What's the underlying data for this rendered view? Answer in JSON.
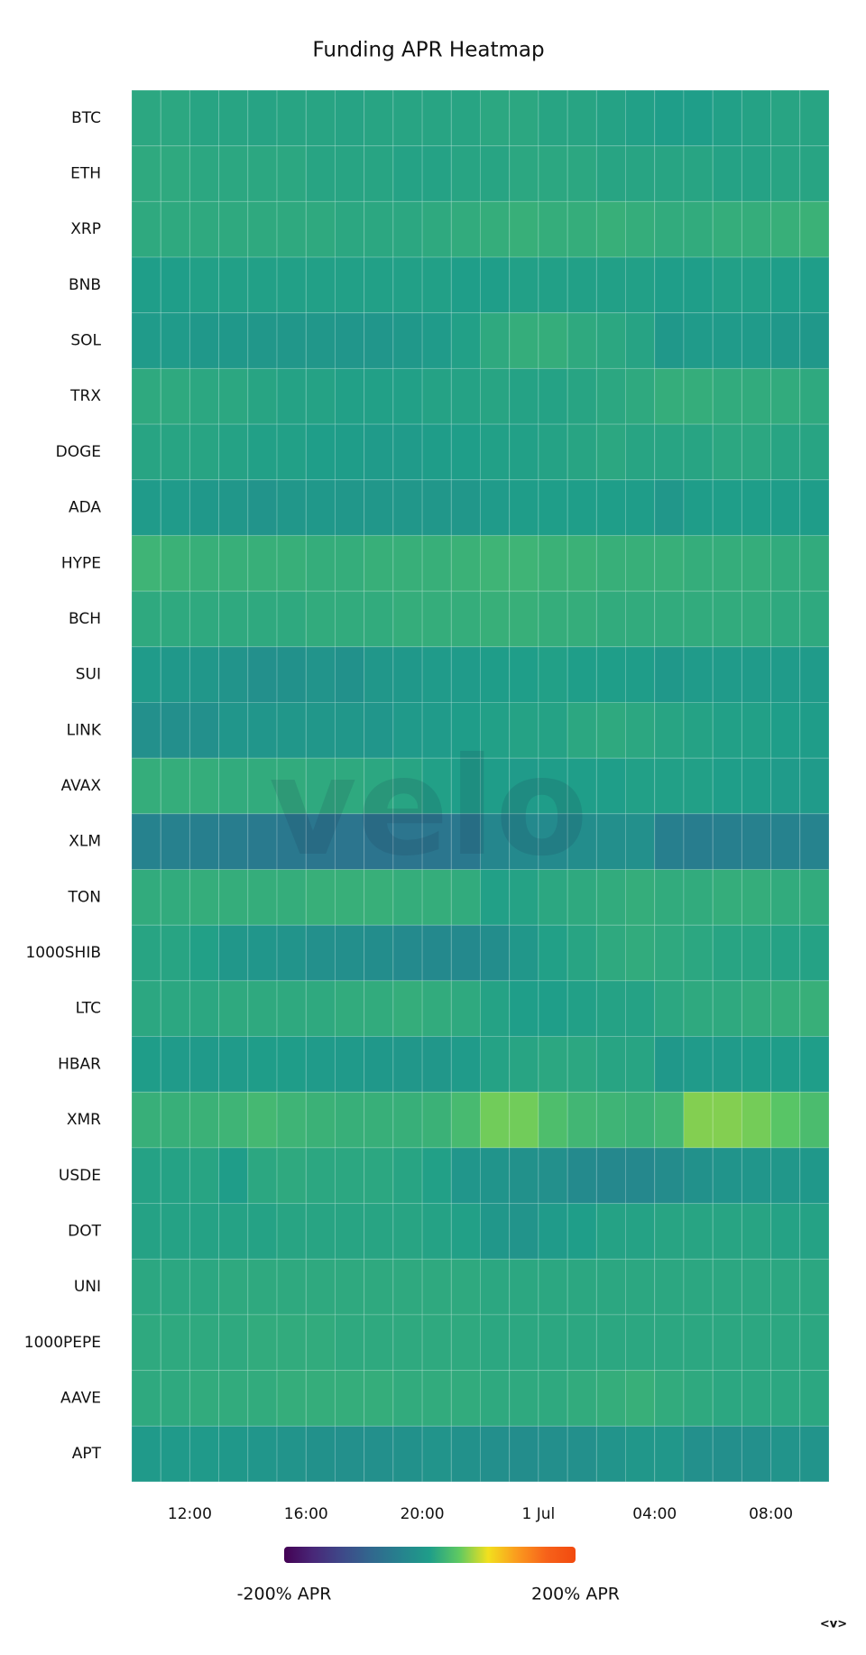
{
  "chart_data": {
    "type": "heatmap",
    "title": "Funding APR Heatmap",
    "watermark": "velo",
    "corner_mark": "<v>",
    "categories": [
      "BTC",
      "ETH",
      "XRP",
      "BNB",
      "SOL",
      "TRX",
      "DOGE",
      "ADA",
      "HYPE",
      "BCH",
      "SUI",
      "LINK",
      "AVAX",
      "XLM",
      "TON",
      "1000SHIB",
      "LTC",
      "HBAR",
      "XMR",
      "USDE",
      "DOT",
      "UNI",
      "1000PEPE",
      "AAVE",
      "APT"
    ],
    "x": [
      10,
      11,
      12,
      13,
      14,
      15,
      16,
      17,
      18,
      19,
      20,
      21,
      22,
      23,
      24,
      25,
      26,
      27,
      28,
      29,
      30,
      31,
      32,
      33
    ],
    "xlim": [
      10,
      34
    ],
    "xticks": [
      {
        "value": 12,
        "label": "12:00"
      },
      {
        "value": 16,
        "label": "16:00"
      },
      {
        "value": 20,
        "label": "20:00"
      },
      {
        "value": 24,
        "label": "1 Jul"
      },
      {
        "value": 28,
        "label": "04:00"
      },
      {
        "value": 32,
        "label": "08:00"
      }
    ],
    "zlim": [
      -200,
      200
    ],
    "zticks": [
      {
        "value": -200,
        "label": "-200% APR"
      },
      {
        "value": 200,
        "label": "200% APR"
      }
    ],
    "colors": [
      "#440154",
      "#482878",
      "#3e4989",
      "#31688e",
      "#26828e",
      "#1f9e89",
      "#5ec962",
      "#f2e01e",
      "#fb9a1e",
      "#f7621a",
      "#f24a0f"
    ],
    "z": [
      [
        8,
        8,
        6,
        6,
        5,
        6,
        6,
        5,
        6,
        6,
        6,
        6,
        8,
        8,
        6,
        6,
        4,
        2,
        0,
        0,
        2,
        4,
        6,
        6
      ],
      [
        10,
        10,
        8,
        8,
        8,
        8,
        6,
        6,
        6,
        4,
        4,
        6,
        6,
        8,
        8,
        8,
        6,
        6,
        6,
        6,
        4,
        4,
        6,
        6
      ],
      [
        10,
        10,
        10,
        10,
        10,
        10,
        10,
        8,
        8,
        8,
        10,
        12,
        14,
        16,
        14,
        14,
        16,
        14,
        12,
        12,
        14,
        14,
        16,
        18
      ],
      [
        0,
        0,
        2,
        2,
        2,
        2,
        2,
        2,
        2,
        2,
        2,
        0,
        0,
        2,
        2,
        2,
        2,
        2,
        0,
        0,
        2,
        2,
        0,
        0
      ],
      [
        -5,
        -5,
        -8,
        -8,
        -10,
        -10,
        -10,
        -12,
        -12,
        -8,
        -5,
        2,
        10,
        14,
        14,
        10,
        8,
        5,
        -8,
        -5,
        -5,
        -5,
        -8,
        -8
      ],
      [
        10,
        10,
        8,
        8,
        6,
        4,
        4,
        2,
        2,
        2,
        4,
        4,
        6,
        4,
        4,
        6,
        8,
        10,
        14,
        14,
        12,
        12,
        12,
        10
      ],
      [
        6,
        6,
        6,
        4,
        2,
        2,
        0,
        -2,
        -4,
        -4,
        -2,
        0,
        2,
        2,
        4,
        6,
        8,
        6,
        6,
        6,
        8,
        8,
        6,
        6
      ],
      [
        -5,
        -5,
        -8,
        -10,
        -15,
        -10,
        -8,
        -10,
        -10,
        -10,
        -10,
        -10,
        -5,
        -2,
        0,
        0,
        0,
        -2,
        -10,
        -2,
        0,
        0,
        -2,
        -2
      ],
      [
        20,
        18,
        16,
        16,
        16,
        16,
        14,
        14,
        16,
        16,
        16,
        18,
        20,
        20,
        18,
        18,
        16,
        16,
        16,
        14,
        14,
        14,
        12,
        12
      ],
      [
        10,
        10,
        10,
        10,
        10,
        10,
        12,
        12,
        12,
        14,
        14,
        14,
        16,
        16,
        14,
        14,
        12,
        12,
        12,
        12,
        12,
        12,
        10,
        10
      ],
      [
        -5,
        -8,
        -10,
        -15,
        -20,
        -18,
        -15,
        -18,
        -10,
        -8,
        -5,
        -5,
        -2,
        0,
        2,
        0,
        0,
        -2,
        -8,
        -5,
        -5,
        -5,
        -5,
        -5
      ],
      [
        -20,
        -22,
        -20,
        -12,
        -12,
        -10,
        -10,
        -10,
        -12,
        -6,
        -5,
        -2,
        2,
        4,
        4,
        8,
        10,
        8,
        6,
        4,
        2,
        2,
        0,
        -2
      ],
      [
        14,
        14,
        14,
        12,
        12,
        12,
        10,
        10,
        8,
        6,
        2,
        0,
        -2,
        -4,
        -2,
        0,
        0,
        2,
        2,
        2,
        0,
        -2,
        -5,
        -5
      ],
      [
        -40,
        -42,
        -44,
        -48,
        -52,
        -55,
        -58,
        -60,
        -62,
        -60,
        -58,
        -55,
        -35,
        -30,
        -28,
        -25,
        -22,
        -20,
        -45,
        -48,
        -45,
        -42,
        -40,
        -38
      ],
      [
        12,
        12,
        14,
        14,
        14,
        14,
        16,
        16,
        16,
        14,
        14,
        12,
        2,
        4,
        8,
        10,
        12,
        14,
        12,
        12,
        14,
        14,
        12,
        12
      ],
      [
        6,
        6,
        2,
        -10,
        -12,
        -15,
        -20,
        -22,
        -25,
        -28,
        -30,
        -30,
        -25,
        -10,
        2,
        6,
        10,
        12,
        10,
        8,
        6,
        6,
        4,
        4
      ],
      [
        8,
        8,
        8,
        10,
        10,
        10,
        10,
        12,
        12,
        14,
        12,
        10,
        4,
        0,
        0,
        2,
        4,
        4,
        8,
        10,
        10,
        12,
        14,
        16
      ],
      [
        -2,
        -4,
        -6,
        -4,
        -2,
        -2,
        -4,
        -6,
        -8,
        -10,
        -10,
        -5,
        4,
        6,
        8,
        8,
        6,
        6,
        -8,
        -4,
        -4,
        -2,
        -2,
        0
      ],
      [
        16,
        16,
        18,
        20,
        24,
        20,
        18,
        16,
        16,
        16,
        18,
        26,
        45,
        45,
        30,
        22,
        20,
        18,
        22,
        50,
        50,
        46,
        36,
        28
      ],
      [
        4,
        4,
        6,
        -2,
        8,
        10,
        8,
        8,
        8,
        6,
        2,
        -12,
        -14,
        -18,
        -20,
        -28,
        -32,
        -32,
        -26,
        -18,
        -14,
        -12,
        -10,
        -8
      ],
      [
        4,
        4,
        4,
        4,
        4,
        6,
        6,
        6,
        6,
        6,
        4,
        2,
        -10,
        -15,
        -5,
        0,
        4,
        4,
        6,
        6,
        6,
        6,
        4,
        4
      ],
      [
        8,
        8,
        8,
        10,
        10,
        10,
        10,
        10,
        10,
        10,
        10,
        10,
        8,
        8,
        8,
        8,
        8,
        8,
        8,
        8,
        8,
        8,
        8,
        8
      ],
      [
        10,
        10,
        10,
        10,
        12,
        12,
        12,
        10,
        10,
        10,
        10,
        10,
        8,
        8,
        8,
        8,
        8,
        8,
        8,
        8,
        8,
        8,
        8,
        8
      ],
      [
        10,
        10,
        12,
        12,
        12,
        14,
        14,
        14,
        14,
        12,
        12,
        12,
        10,
        10,
        10,
        12,
        14,
        16,
        12,
        10,
        8,
        8,
        8,
        8
      ],
      [
        -6,
        -6,
        -6,
        -8,
        -12,
        -15,
        -18,
        -20,
        -20,
        -18,
        -15,
        -18,
        -22,
        -25,
        -22,
        -20,
        -15,
        -10,
        -10,
        -20,
        -22,
        -20,
        -15,
        -15
      ]
    ]
  }
}
